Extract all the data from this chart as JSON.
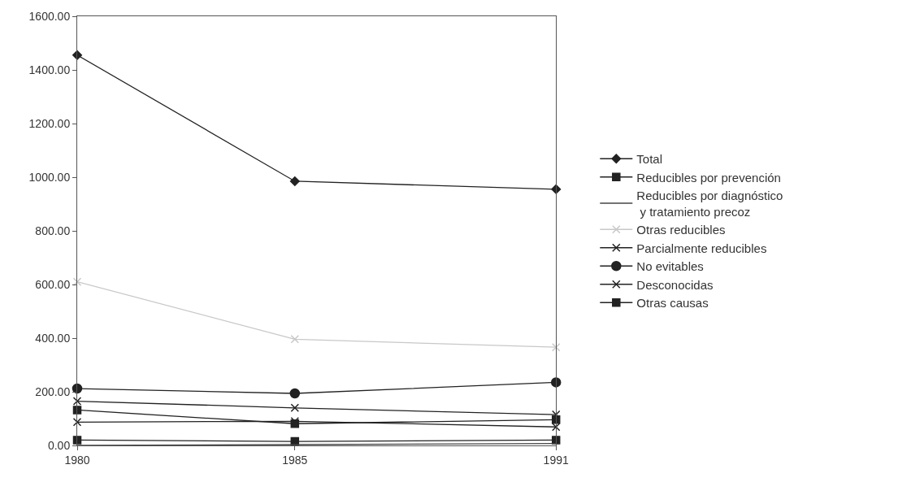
{
  "chart_data": {
    "type": "line",
    "x": [
      1980,
      1985,
      1991
    ],
    "xlim": [
      1980,
      1991
    ],
    "xticks": [
      1980,
      1985,
      1991
    ],
    "ylim": [
      0,
      1600
    ],
    "yticks": [
      {
        "value": 0,
        "label": "0.00"
      },
      {
        "value": 200,
        "label": "200.00"
      },
      {
        "value": 400,
        "label": "400.00"
      },
      {
        "value": 600,
        "label": "600.00"
      },
      {
        "value": 800,
        "label": "800.00"
      },
      {
        "value": 1000,
        "label": "1000.00"
      },
      {
        "value": 1200,
        "label": "1200.00"
      },
      {
        "value": 1400,
        "label": "1400.00"
      },
      {
        "value": 1600,
        "label": "1600.00"
      }
    ],
    "legend": "right",
    "series": [
      {
        "name": "Total",
        "color": "#222222",
        "marker": "diamond",
        "values": [
          1455,
          985,
          955
        ]
      },
      {
        "name": "Reducibles por prevención",
        "color": "#222222",
        "marker": "square",
        "values": [
          20,
          15,
          20
        ]
      },
      {
        "name": "Reducibles por diagnóstico\n y tratamiento precoz",
        "color": "#444444",
        "marker": "none",
        "values": [
          0,
          3,
          7
        ]
      },
      {
        "name": "Otras reducibles",
        "color": "#c8c8c8",
        "marker": "cross",
        "values": [
          610,
          396,
          366
        ]
      },
      {
        "name": "Parcialmente reducibles",
        "color": "#222222",
        "marker": "cross",
        "values": [
          87,
          90,
          69
        ]
      },
      {
        "name": "No evitables",
        "color": "#222222",
        "marker": "circle",
        "values": [
          212,
          194,
          235
        ]
      },
      {
        "name": "Desconocidas",
        "color": "#222222",
        "marker": "cross",
        "values": [
          165,
          140,
          115
        ]
      },
      {
        "name": "Otras causas",
        "color": "#222222",
        "marker": "square",
        "values": [
          132,
          81,
          96
        ]
      }
    ]
  }
}
